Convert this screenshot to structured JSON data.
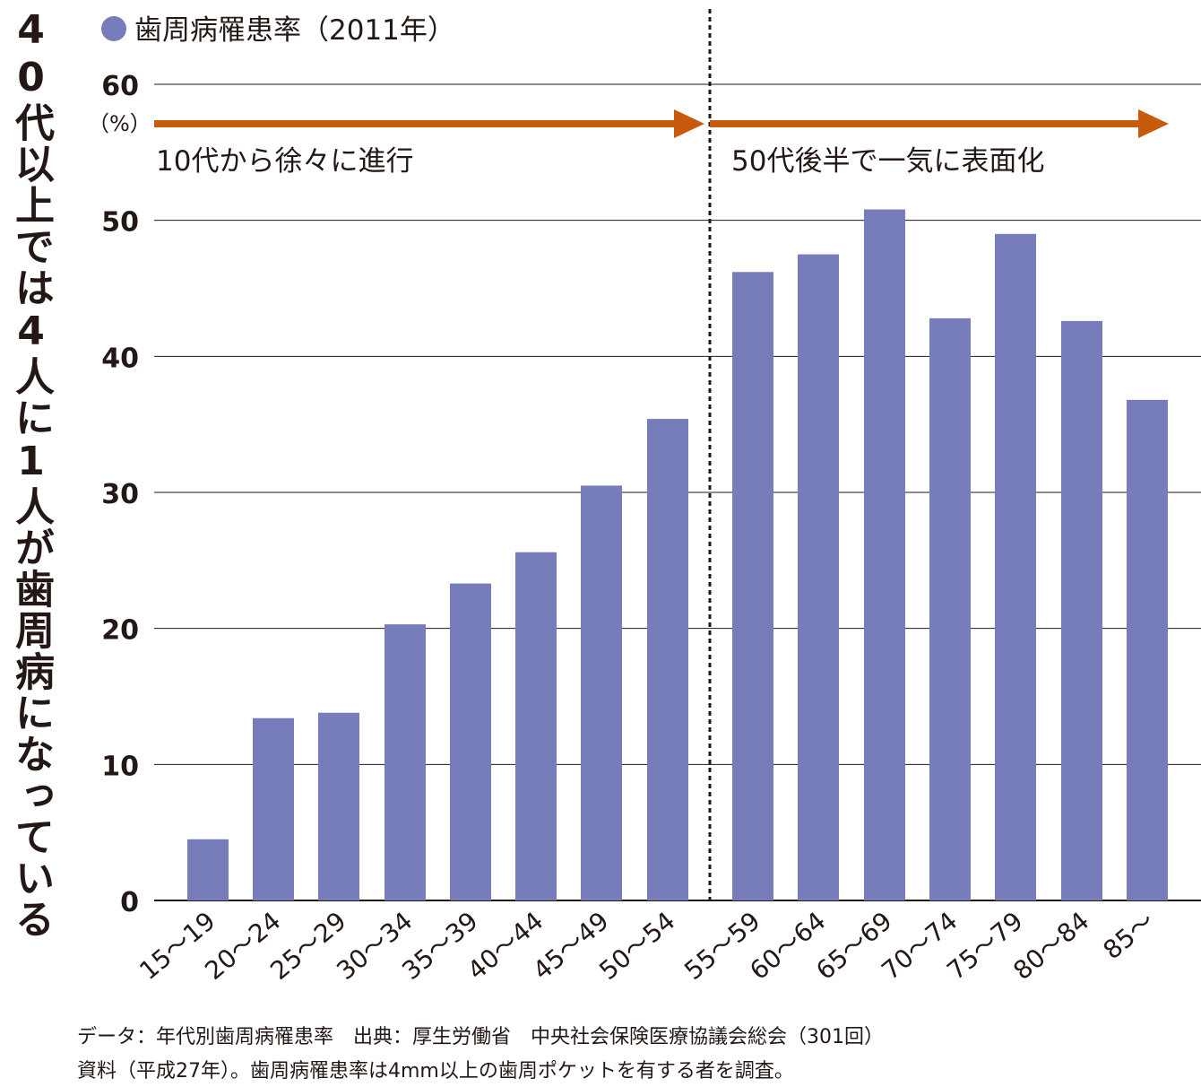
{
  "side_title": "40代以上では4人に1人が歯周病になっている",
  "annotations": {
    "left_arrow_label": "10代から徐々に進行",
    "right_arrow_label": "50代後半で一気に表面化"
  },
  "footnote": {
    "line1": "データ：年代別歯周病罹患率　出典：厚生労働省　中央社会保険医療協議会総会（301回）",
    "line2": "資料（平成27年）。歯周病罹患率は4mm以上の歯周ポケットを有する者を調査。"
  },
  "colors": {
    "bar": "#777cba",
    "arrow": "#c85a0e",
    "text": "#231815"
  },
  "chart_data": {
    "type": "bar",
    "title": "",
    "legend": [
      {
        "label": "歯周病罹患率（2011年）",
        "color": "#777cba"
      }
    ],
    "legend_position": "top-left",
    "ylabel": "（%）",
    "xlabel": "",
    "ylim": [
      0,
      60
    ],
    "yticks": [
      "0",
      "10",
      "20",
      "30",
      "40",
      "50",
      "60"
    ],
    "grid": true,
    "categories": [
      "15～19",
      "20～24",
      "25～29",
      "30～34",
      "35～39",
      "40～44",
      "45～49",
      "50～54",
      "55～59",
      "60～64",
      "65～69",
      "70～74",
      "75～79",
      "80～84",
      "85～"
    ],
    "values": [
      4.5,
      13.4,
      13.8,
      20.3,
      23.3,
      25.6,
      30.5,
      35.4,
      46.2,
      47.5,
      50.8,
      42.8,
      49.0,
      42.6,
      36.8
    ],
    "divider_after_category": "50～54"
  }
}
